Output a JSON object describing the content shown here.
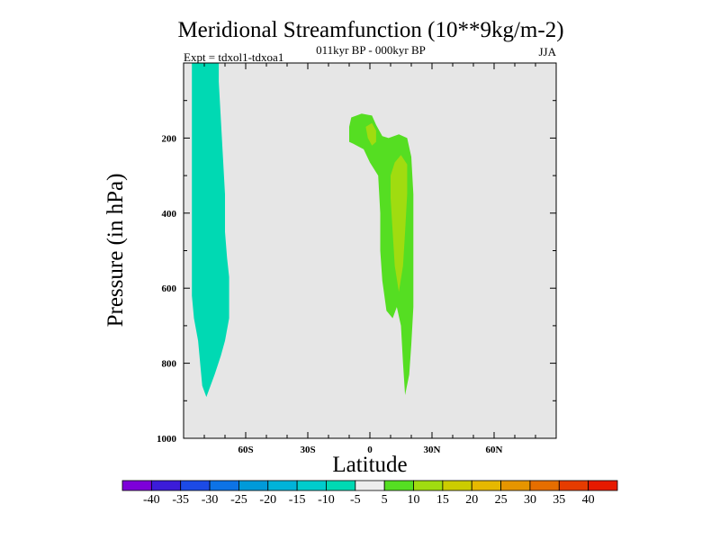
{
  "chart_data": {
    "type": "contour",
    "title": "Meridional Streamfunction (10**9kg/m-2)",
    "subtitle_center": "011kyr BP - 000kyr BP",
    "subtitle_left": "Expt = tdxol1-tdxoa1",
    "subtitle_right": "JJA",
    "xlabel": "Latitude",
    "ylabel": "Pressure (in hPa)",
    "xlim": [
      -90,
      90
    ],
    "ylim": [
      1000,
      0
    ],
    "x_ticks": [
      {
        "value": -60,
        "label": "60S"
      },
      {
        "value": -30,
        "label": "30S"
      },
      {
        "value": 0,
        "label": "0"
      },
      {
        "value": 30,
        "label": "30N"
      },
      {
        "value": 60,
        "label": "60N"
      }
    ],
    "y_ticks": [
      {
        "value": 200,
        "label": "200"
      },
      {
        "value": 400,
        "label": "400"
      },
      {
        "value": 600,
        "label": "600"
      },
      {
        "value": 800,
        "label": "800"
      },
      {
        "value": 1000,
        "label": "1000"
      }
    ],
    "background_color": "#e6e6e6",
    "regions": [
      {
        "name": "southern-negative-cell",
        "level": "-10 to -5",
        "color": "#00d9b3",
        "points": [
          [
            -86,
            0
          ],
          [
            -73,
            0
          ],
          [
            -73,
            50
          ],
          [
            -72,
            150
          ],
          [
            -71,
            250
          ],
          [
            -70,
            350
          ],
          [
            -70,
            450
          ],
          [
            -69,
            520
          ],
          [
            -68,
            570
          ],
          [
            -68,
            620
          ],
          [
            -68,
            680
          ],
          [
            -70,
            740
          ],
          [
            -72,
            780
          ],
          [
            -75,
            830
          ],
          [
            -77,
            860
          ],
          [
            -79,
            890
          ],
          [
            -81,
            860
          ],
          [
            -82,
            800
          ],
          [
            -83,
            740
          ],
          [
            -85,
            680
          ],
          [
            -86,
            620
          ]
        ]
      },
      {
        "name": "northern-positive-cell-outer",
        "level": "5 to 10",
        "color": "#55de22",
        "points": [
          [
            -10,
            170
          ],
          [
            -9,
            145
          ],
          [
            -4,
            135
          ],
          [
            1,
            140
          ],
          [
            3,
            165
          ],
          [
            6,
            195
          ],
          [
            9,
            200
          ],
          [
            14,
            190
          ],
          [
            18,
            200
          ],
          [
            20,
            250
          ],
          [
            21,
            350
          ],
          [
            21,
            450
          ],
          [
            21,
            550
          ],
          [
            21,
            650
          ],
          [
            20,
            750
          ],
          [
            19,
            830
          ],
          [
            17,
            885
          ],
          [
            16,
            800
          ],
          [
            15,
            700
          ],
          [
            13,
            650
          ],
          [
            11,
            680
          ],
          [
            8,
            660
          ],
          [
            6,
            580
          ],
          [
            5,
            500
          ],
          [
            5,
            400
          ],
          [
            4,
            300
          ],
          [
            0,
            265
          ],
          [
            -3,
            230
          ],
          [
            -8,
            215
          ],
          [
            -10,
            210
          ]
        ]
      },
      {
        "name": "northern-positive-cell-inner-upper",
        "level": "10 to 15",
        "color": "#a0dc10",
        "points": [
          [
            -2,
            170
          ],
          [
            1,
            160
          ],
          [
            3,
            180
          ],
          [
            3,
            210
          ],
          [
            1,
            220
          ],
          [
            -1,
            200
          ]
        ]
      },
      {
        "name": "northern-positive-cell-inner-lower",
        "level": "10 to 15",
        "color": "#a0dc10",
        "points": [
          [
            12,
            265
          ],
          [
            15,
            245
          ],
          [
            18,
            270
          ],
          [
            18,
            350
          ],
          [
            17,
            450
          ],
          [
            16,
            540
          ],
          [
            14,
            610
          ],
          [
            12,
            540
          ],
          [
            11,
            450
          ],
          [
            10,
            360
          ],
          [
            10,
            300
          ]
        ]
      }
    ],
    "colorbar": {
      "labels": [
        "-40",
        "-35",
        "-30",
        "-25",
        "-20",
        "-15",
        "-10",
        "-5",
        "5",
        "10",
        "15",
        "20",
        "25",
        "30",
        "35",
        "40"
      ],
      "colors": [
        "#7d00d9",
        "#3c1cd9",
        "#1c4ae6",
        "#0d73e6",
        "#009ad9",
        "#00b3d9",
        "#00cccc",
        "#00d9b3",
        "#ededed",
        "#55de22",
        "#a0dc10",
        "#cccc00",
        "#e6b800",
        "#e69500",
        "#e66e00",
        "#e63c00",
        "#e61a00"
      ]
    }
  }
}
